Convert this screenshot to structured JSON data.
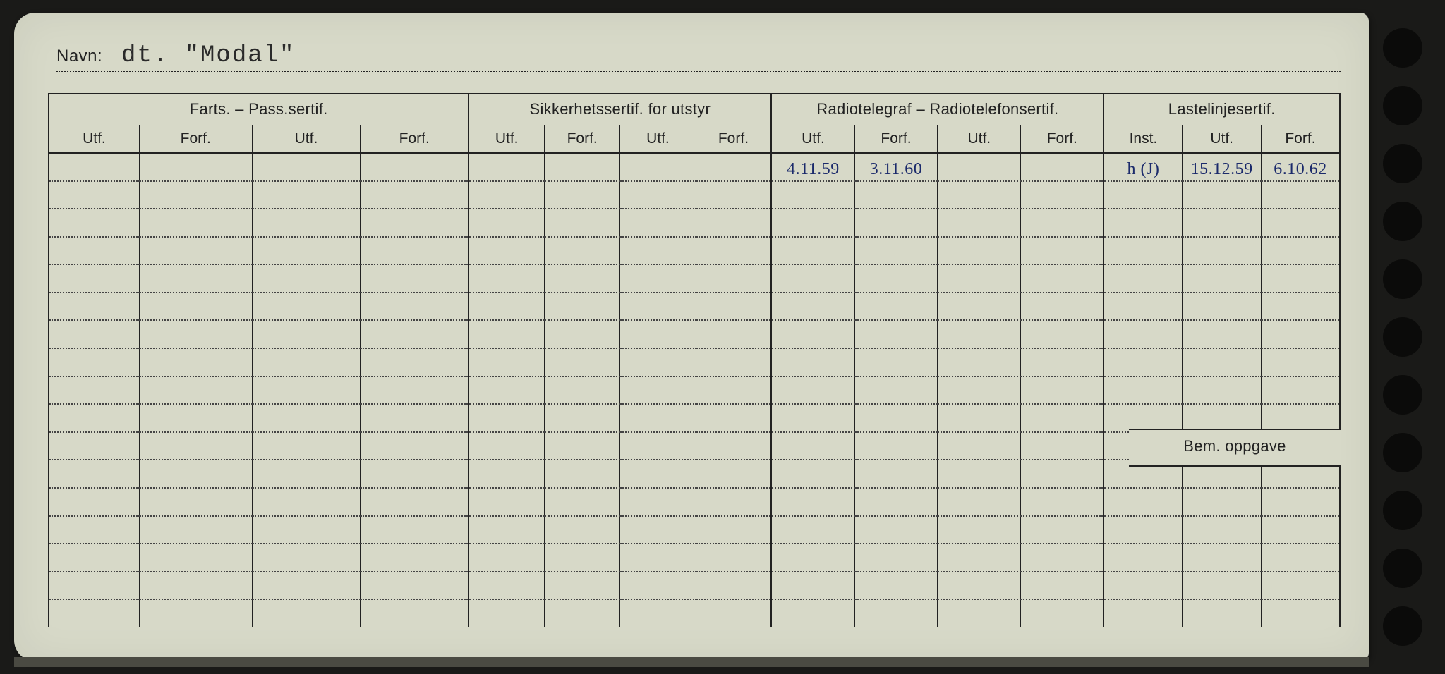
{
  "colors": {
    "page_bg": "#1a1a18",
    "card_bg": "#d7d9c8",
    "ink": "#222222",
    "handwriting": "#1b2a6b",
    "dotted": "#444444"
  },
  "name_label": "Navn:",
  "name_value": "dt. \"Modal\"",
  "groups": [
    {
      "title": "Farts. – Pass.sertif.",
      "subs": [
        "Utf.",
        "Forf.",
        "Utf.",
        "Forf."
      ]
    },
    {
      "title": "Sikkerhetssertif. for utstyr",
      "subs": [
        "Utf.",
        "Forf.",
        "Utf.",
        "Forf."
      ]
    },
    {
      "title": "Radiotelegraf – Radiotelefonsertif.",
      "subs": [
        "Utf.",
        "Forf.",
        "Utf.",
        "Forf."
      ]
    },
    {
      "title": "Lastelinjesertif.",
      "subs": [
        "Inst.",
        "Utf.",
        "Forf."
      ]
    }
  ],
  "bem_label": "Bem. oppgave",
  "entries": {
    "row0": {
      "col8": "4.11.59",
      "col9": "3.11.60",
      "col12": "h (J)",
      "col13": "15.12.59",
      "col14": "6.10.62"
    }
  },
  "row_count": 17,
  "typography": {
    "header_fontsize": 22,
    "sub_fontsize": 21,
    "name_value_font": "monospace",
    "name_value_fontsize": 34,
    "hand_fontsize": 24
  },
  "binder_holes": 11
}
